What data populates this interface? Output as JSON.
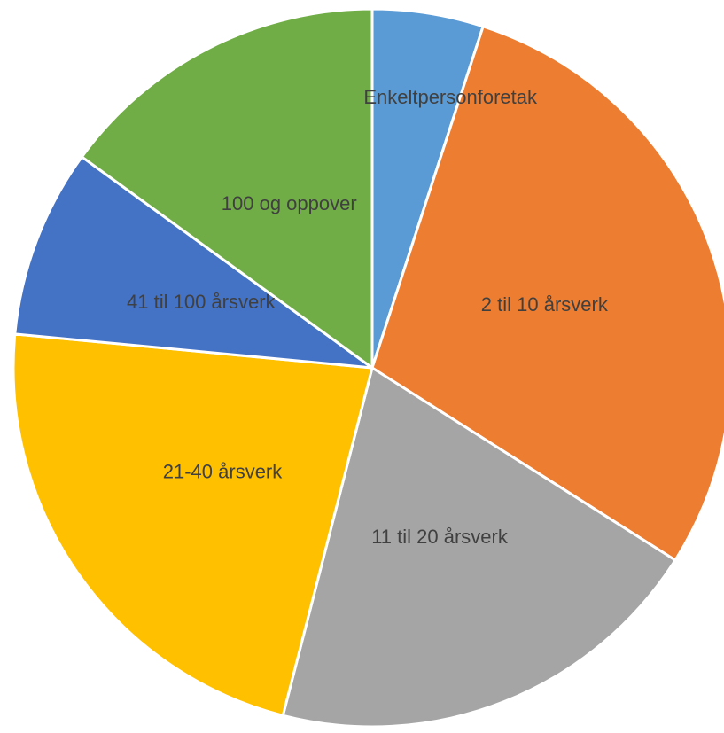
{
  "chart_data": {
    "type": "pie",
    "categories": [
      "Enkeltpersonforetak",
      "2 til 10 årsverk",
      "11 til 20 årsverk",
      "21-40 årsverk",
      "41 til 100 årsverk",
      "100 og oppover"
    ],
    "values": [
      5,
      29,
      20,
      22.5,
      8.5,
      15
    ],
    "colors": [
      "#5b9bd5",
      "#ed7d31",
      "#a5a5a5",
      "#ffc000",
      "#4472c4",
      "#70ad47"
    ]
  }
}
